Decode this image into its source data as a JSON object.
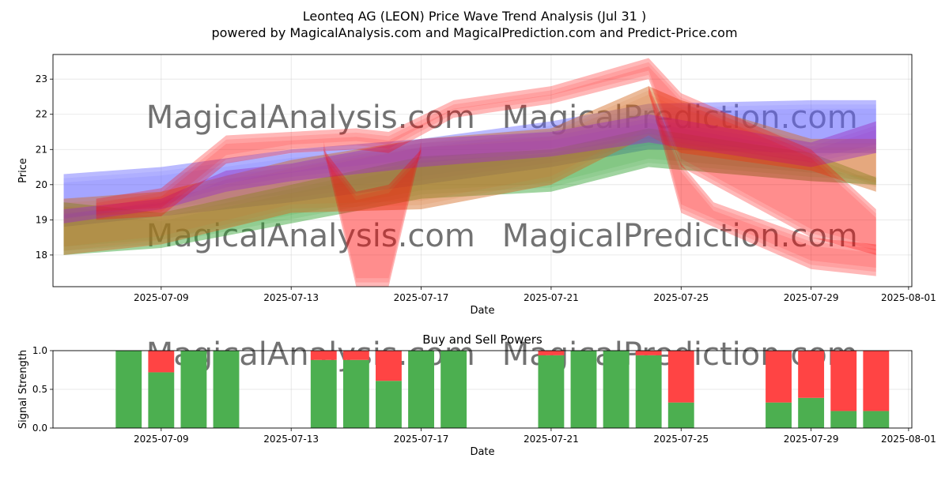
{
  "header": {
    "title": "Leonteq AG (LEON) Price Wave Trend Analysis (Jul 31 )",
    "subtitle": "powered by MagicalAnalysis.com and MagicalPrediction.com and Predict-Price.com"
  },
  "watermarks": [
    "MagicalAnalysis.com",
    "MagicalPrediction.com"
  ],
  "colors": {
    "blue_band": "#6666ff",
    "green_band": "#2ca02c",
    "red_band": "#ff0000",
    "purple_band": "#9b30c0",
    "orange_band": "#d2691e",
    "buy": "#4caf50",
    "sell": "#ff4444"
  },
  "chart_data": [
    {
      "type": "area",
      "title": "",
      "xlabel": "Date",
      "ylabel": "Price",
      "x_ticks": [
        "2025-07-09",
        "2025-07-13",
        "2025-07-17",
        "2025-07-21",
        "2025-07-25",
        "2025-07-29",
        "2025-08-01"
      ],
      "y_ticks": [
        18,
        19,
        20,
        21,
        22,
        23
      ],
      "xlim": [
        "2025-07-05",
        "2025-08-01"
      ],
      "ylim": [
        17.1,
        23.7
      ],
      "grid": true,
      "series": [
        {
          "color_key": "blue_band",
          "x": [
            "2025-07-06",
            "2025-07-09",
            "2025-07-13",
            "2025-07-17",
            "2025-07-21",
            "2025-07-24",
            "2025-07-29",
            "2025-07-31"
          ],
          "upper": [
            20.3,
            20.5,
            21.0,
            21.3,
            21.8,
            22.3,
            22.4,
            22.4
          ],
          "lower": [
            18.8,
            19.1,
            19.5,
            20.0,
            20.5,
            21.0,
            20.9,
            20.9
          ]
        },
        {
          "color_key": "green_band",
          "x": [
            "2025-07-06",
            "2025-07-09",
            "2025-07-13",
            "2025-07-17",
            "2025-07-21",
            "2025-07-24",
            "2025-07-29",
            "2025-07-31"
          ],
          "upper": [
            19.5,
            19.2,
            20.0,
            20.8,
            21.0,
            21.6,
            20.9,
            20.2
          ],
          "lower": [
            18.0,
            18.2,
            18.9,
            19.6,
            19.8,
            20.5,
            20.1,
            20.0
          ]
        },
        {
          "color_key": "orange_band",
          "x": [
            "2025-07-06",
            "2025-07-09",
            "2025-07-13",
            "2025-07-17",
            "2025-07-21",
            "2025-07-24",
            "2025-07-25",
            "2025-07-29",
            "2025-07-31"
          ],
          "upper": [
            19.6,
            19.8,
            20.7,
            21.3,
            21.6,
            22.8,
            22.4,
            21.3,
            21.3
          ],
          "lower": [
            18.0,
            18.3,
            19.2,
            19.3,
            20.0,
            21.4,
            20.9,
            20.4,
            19.8
          ]
        },
        {
          "color_key": "purple_band",
          "x": [
            "2025-07-06",
            "2025-07-09",
            "2025-07-11",
            "2025-07-13",
            "2025-07-17",
            "2025-07-21",
            "2025-07-24",
            "2025-07-29",
            "2025-07-31"
          ],
          "upper": [
            19.3,
            19.6,
            20.4,
            20.6,
            21.3,
            21.5,
            22.0,
            21.2,
            21.8
          ],
          "lower": [
            18.9,
            19.3,
            19.8,
            20.1,
            20.5,
            20.8,
            21.2,
            20.5,
            20.9
          ]
        },
        {
          "color_key": "red_band",
          "x": [
            "2025-07-07",
            "2025-07-09",
            "2025-07-11",
            "2025-07-13",
            "2025-07-15",
            "2025-07-16",
            "2025-07-18",
            "2025-07-21",
            "2025-07-24",
            "2025-07-25",
            "2025-07-29",
            "2025-07-31"
          ],
          "upper": [
            19.6,
            19.9,
            21.4,
            21.5,
            21.6,
            21.5,
            22.4,
            22.8,
            23.6,
            22.6,
            21.0,
            19.3
          ],
          "lower": [
            19.0,
            19.1,
            20.6,
            20.9,
            21.0,
            20.9,
            21.9,
            22.3,
            23.0,
            20.5,
            18.5,
            18.0
          ]
        },
        {
          "color_key": "red_band",
          "x": [
            "2025-07-14",
            "2025-07-15",
            "2025-07-16",
            "2025-07-17"
          ],
          "upper": [
            21.0,
            19.8,
            20.0,
            21.0
          ],
          "lower": [
            21.0,
            17.1,
            17.1,
            21.0
          ]
        },
        {
          "color_key": "red_band",
          "x": [
            "2025-07-24",
            "2025-07-25",
            "2025-07-26",
            "2025-07-29",
            "2025-07-31"
          ],
          "upper": [
            22.8,
            20.6,
            19.5,
            18.5,
            18.3
          ],
          "lower": [
            22.6,
            19.2,
            18.8,
            17.6,
            17.4
          ]
        }
      ]
    },
    {
      "type": "bar",
      "title": "Buy and Sell Powers",
      "xlabel": "Date",
      "ylabel": "Signal Strength",
      "x_ticks": [
        "2025-07-09",
        "2025-07-13",
        "2025-07-17",
        "2025-07-21",
        "2025-07-25",
        "2025-07-29",
        "2025-08-01"
      ],
      "y_ticks": [
        "0.0",
        "0.5",
        "1.0"
      ],
      "ylim": [
        0,
        1
      ],
      "grid": true,
      "categories": [
        "2025-07-08",
        "2025-07-09",
        "2025-07-10",
        "2025-07-11",
        "2025-07-14",
        "2025-07-15",
        "2025-07-16",
        "2025-07-17",
        "2025-07-18",
        "2025-07-21",
        "2025-07-22",
        "2025-07-23",
        "2025-07-24",
        "2025-07-25",
        "2025-07-28",
        "2025-07-29",
        "2025-07-30",
        "2025-07-31"
      ],
      "series": [
        {
          "name": "Buy",
          "values": [
            1.0,
            0.72,
            1.0,
            1.0,
            0.88,
            0.88,
            0.61,
            1.0,
            1.0,
            0.94,
            1.0,
            1.0,
            0.94,
            0.33,
            0.33,
            0.39,
            0.22,
            0.22
          ]
        },
        {
          "name": "Sell",
          "values": [
            0.0,
            0.28,
            0.0,
            0.0,
            0.12,
            0.12,
            0.39,
            0.0,
            0.0,
            0.06,
            0.0,
            0.0,
            0.06,
            0.67,
            0.67,
            0.61,
            0.78,
            0.78
          ]
        }
      ]
    }
  ]
}
